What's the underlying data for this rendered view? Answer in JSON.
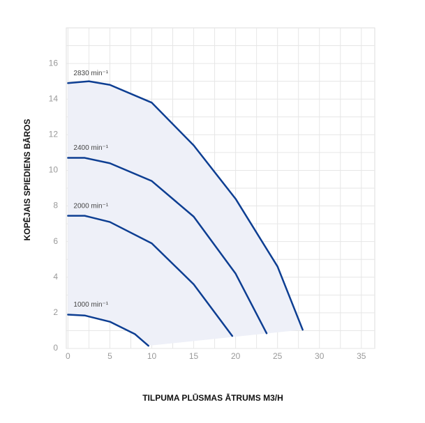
{
  "chart_data": {
    "type": "line",
    "x_label": "TILPUMA PLŪSMAS ĀTRUMS M3/H",
    "y_label": "KOPĒJAIS SPIEDIENS BĀROS",
    "xlim": [
      -0.2,
      36.6
    ],
    "ylim": [
      0,
      18
    ],
    "xticks": [
      0,
      5,
      10,
      15,
      20,
      25,
      30,
      35
    ],
    "yticks": [
      0,
      2,
      4,
      6,
      8,
      10,
      12,
      14,
      16
    ],
    "minor_xticks": [
      2.5,
      7.5,
      12.5,
      17.5,
      22.5,
      27.5,
      32.5
    ],
    "minor_yticks": [
      1,
      3,
      5,
      7,
      9,
      11,
      13,
      15,
      17
    ],
    "grid": true,
    "area_color": "#eef0f8",
    "series": [
      {
        "name": "2830 min⁻¹",
        "color": "#0d3e92",
        "x": [
          0,
          2.5,
          5,
          10,
          15,
          20,
          25,
          28
        ],
        "values": [
          14.9,
          15.0,
          14.8,
          13.8,
          11.4,
          8.4,
          4.6,
          1.05
        ]
      },
      {
        "name": "2400 min⁻¹",
        "color": "#0d3e92",
        "x": [
          0,
          2,
          5,
          10,
          15,
          20,
          23.7
        ],
        "values": [
          10.7,
          10.7,
          10.4,
          9.4,
          7.4,
          4.2,
          0.85
        ]
      },
      {
        "name": "2000 min⁻¹",
        "color": "#0d3e92",
        "x": [
          0,
          2,
          5,
          10,
          15,
          19.6
        ],
        "values": [
          7.45,
          7.45,
          7.1,
          5.9,
          3.6,
          0.7
        ]
      },
      {
        "name": "1000 min⁻¹",
        "color": "#0d3e92",
        "x": [
          0,
          2,
          5,
          8,
          9.6
        ],
        "values": [
          1.9,
          1.85,
          1.5,
          0.8,
          0.15
        ]
      }
    ]
  }
}
